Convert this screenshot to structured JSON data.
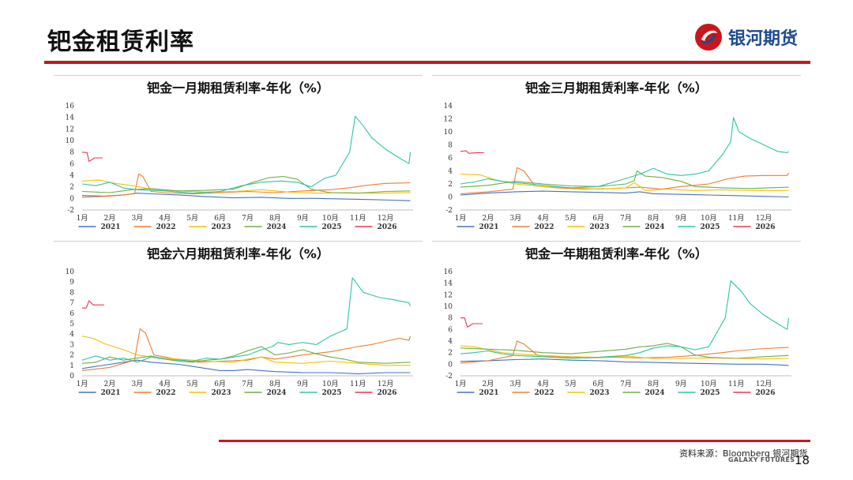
{
  "page": {
    "title": "钯金租赁利率",
    "logo_text": "银河期货",
    "source": "资料来源：Bloomberg 银河期货",
    "brand_en": "GALAXY FUTURES",
    "page_number": "18"
  },
  "colors": {
    "accent": "#c9161d",
    "logo_blue": "#1f4a8f",
    "series": {
      "2021": "#4472c4",
      "2022": "#ed7d31",
      "2023": "#f2c200",
      "2024": "#70ad47",
      "2025": "#2ec4a6",
      "2026": "#e8384f"
    }
  },
  "chart_data": [
    {
      "type": "line",
      "title": "钯金一月期租赁利率-年化（%）",
      "x_labels": [
        "1月",
        "2月",
        "3月",
        "4月",
        "5月",
        "6月",
        "7月",
        "8月",
        "9月",
        "10月",
        "11月",
        "12月"
      ],
      "ylim": [
        -2,
        16
      ],
      "yticks": [
        -2,
        0,
        2,
        4,
        6,
        8,
        10,
        12,
        14,
        16
      ],
      "legend_position": "bottom",
      "grid": false,
      "series": [
        {
          "name": "2021",
          "x": [
            1,
            1.8,
            2.5,
            3,
            3.5,
            4.5,
            5.5,
            6.5,
            7.5,
            8.5,
            9.5,
            10.5,
            11.5,
            12.2,
            12.9
          ],
          "y": [
            0.5,
            0.4,
            0.6,
            0.9,
            0.8,
            0.6,
            0.3,
            0.1,
            0.2,
            0.0,
            0.0,
            -0.1,
            -0.2,
            -0.3,
            -0.4
          ]
        },
        {
          "name": "2022",
          "x": [
            1,
            2,
            2.9,
            3.05,
            3.2,
            3.5,
            4,
            5,
            6,
            7,
            8,
            9,
            10,
            10.8,
            11.2,
            12,
            12.9
          ],
          "y": [
            0.2,
            0.4,
            0.8,
            4.2,
            3.8,
            1.2,
            1.0,
            0.8,
            1.0,
            1.2,
            1.0,
            1.3,
            1.5,
            1.9,
            2.2,
            2.6,
            2.7
          ]
        },
        {
          "name": "2023",
          "x": [
            1,
            1.6,
            2.2,
            2.8,
            3.5,
            4.5,
            5.5,
            6.5,
            7.5,
            8.5,
            9.5,
            10.5,
            11.5,
            12.9
          ],
          "y": [
            3.0,
            3.2,
            2.6,
            2.2,
            1.6,
            1.3,
            1.1,
            1.2,
            1.5,
            1.1,
            0.9,
            1.0,
            0.9,
            1.0
          ]
        },
        {
          "name": "2024",
          "x": [
            1,
            2,
            2.8,
            3.5,
            4.5,
            5.5,
            6.5,
            7.2,
            7.8,
            8.3,
            8.8,
            9.3,
            10,
            11,
            12,
            12.9
          ],
          "y": [
            1.2,
            1.0,
            1.5,
            1.7,
            1.3,
            1.4,
            1.6,
            2.8,
            3.6,
            3.8,
            3.3,
            1.6,
            1.0,
            0.9,
            1.2,
            1.3
          ]
        },
        {
          "name": "2025",
          "x": [
            1,
            1.5,
            2,
            2.5,
            3,
            4,
            5,
            6,
            6.8,
            7.5,
            8.2,
            8.8,
            9.3,
            9.8,
            10.2,
            10.7,
            10.9,
            11.2,
            11.5,
            12,
            12.5,
            12.85,
            12.9
          ],
          "y": [
            2.5,
            2.2,
            2.8,
            1.8,
            1.5,
            1.3,
            0.9,
            1.2,
            2.2,
            2.8,
            3.0,
            2.8,
            2.0,
            3.5,
            4.0,
            8.0,
            14.2,
            12.5,
            10.5,
            8.5,
            7.0,
            6.0,
            8.0
          ]
        },
        {
          "name": "2026",
          "x": [
            1,
            1.18,
            1.25,
            1.45,
            1.75
          ],
          "y": [
            8.0,
            7.9,
            6.4,
            7.0,
            7.0
          ]
        }
      ]
    },
    {
      "type": "line",
      "title": "钯金三月期租赁利率-年化（%）",
      "x_labels": [
        "1月",
        "2月",
        "3月",
        "4月",
        "5月",
        "6月",
        "7月",
        "8月",
        "9月",
        "10月",
        "11月",
        "12月"
      ],
      "ylim": [
        -2,
        14
      ],
      "yticks": [
        -2,
        0,
        2,
        4,
        6,
        8,
        10,
        12,
        14
      ],
      "legend_position": "bottom",
      "grid": false,
      "series": [
        {
          "name": "2021",
          "x": [
            1,
            2,
            3,
            4,
            5,
            6,
            7,
            7.5,
            8,
            9,
            10,
            11,
            12,
            12.9
          ],
          "y": [
            0.3,
            0.6,
            0.8,
            0.9,
            0.8,
            0.7,
            0.6,
            0.8,
            0.5,
            0.4,
            0.3,
            0.2,
            0.1,
            0.0
          ]
        },
        {
          "name": "2022",
          "x": [
            1,
            2,
            2.9,
            3.05,
            3.3,
            3.7,
            4.5,
            5.5,
            6.5,
            7.5,
            8.3,
            9,
            10,
            10.7,
            11.3,
            12,
            12.85,
            12.9
          ],
          "y": [
            0.5,
            0.8,
            1.2,
            4.5,
            4.0,
            1.7,
            1.4,
            1.2,
            1.3,
            1.5,
            1.2,
            1.6,
            2.0,
            2.8,
            3.2,
            3.3,
            3.3,
            3.7
          ]
        },
        {
          "name": "2023",
          "x": [
            1,
            1.7,
            2.3,
            3,
            4,
            5,
            6,
            7,
            7.3,
            7.7,
            8.5,
            9.5,
            10.5,
            11.5,
            12.9
          ],
          "y": [
            3.5,
            3.4,
            2.6,
            2.0,
            1.6,
            1.4,
            1.2,
            1.4,
            2.2,
            1.0,
            1.2,
            1.0,
            1.1,
            1.0,
            1.0
          ]
        },
        {
          "name": "2024",
          "x": [
            1,
            2,
            3,
            4,
            5,
            6,
            7,
            7.3,
            7.4,
            7.7,
            8.3,
            9,
            9.5,
            10.5,
            11.5,
            12.9
          ],
          "y": [
            1.5,
            1.8,
            2.4,
            2.0,
            1.7,
            1.6,
            2.0,
            2.5,
            4.0,
            3.2,
            3.0,
            2.4,
            1.6,
            1.4,
            1.3,
            1.5
          ]
        },
        {
          "name": "2025",
          "x": [
            1,
            1.5,
            2,
            2.5,
            3,
            4,
            5,
            6,
            6.8,
            7.5,
            8,
            8.5,
            9,
            9.5,
            10,
            10.5,
            10.8,
            10.9,
            11.1,
            11.5,
            12,
            12.5,
            12.85,
            12.9
          ],
          "y": [
            2.0,
            2.3,
            2.8,
            2.4,
            2.2,
            1.8,
            1.4,
            1.6,
            2.6,
            3.5,
            4.4,
            3.5,
            3.3,
            3.5,
            4.0,
            6.5,
            8.5,
            12.2,
            10.0,
            9.0,
            8.0,
            7.0,
            6.8,
            7.0
          ]
        },
        {
          "name": "2026",
          "x": [
            1,
            1.2,
            1.3,
            1.6,
            1.85
          ],
          "y": [
            7.0,
            7.1,
            6.7,
            6.8,
            6.8
          ]
        }
      ]
    },
    {
      "type": "line",
      "title": "钯金六月期租赁利率-年化（%）",
      "x_labels": [
        "1月",
        "2月",
        "3月",
        "4月",
        "5月",
        "6月",
        "7月",
        "8月",
        "9月",
        "10月",
        "11月",
        "12月"
      ],
      "ylim": [
        0,
        10
      ],
      "yticks": [
        0,
        1,
        2,
        3,
        4,
        5,
        6,
        7,
        8,
        9,
        10
      ],
      "legend_position": "bottom",
      "grid": false,
      "series": [
        {
          "name": "2021",
          "x": [
            1,
            1.5,
            2,
            2.5,
            3,
            3.5,
            4,
            4.5,
            5,
            5.5,
            6,
            6.5,
            7,
            7.5,
            8,
            9,
            10,
            11,
            12,
            12.9
          ],
          "y": [
            0.7,
            0.9,
            1.1,
            1.3,
            1.5,
            1.3,
            1.2,
            1.1,
            0.9,
            0.7,
            0.5,
            0.5,
            0.6,
            0.5,
            0.4,
            0.3,
            0.3,
            0.2,
            0.3,
            0.3
          ]
        },
        {
          "name": "2022",
          "x": [
            1,
            2,
            2.9,
            3.1,
            3.3,
            3.6,
            4,
            4.6,
            5.2,
            6,
            7,
            7.5,
            8,
            9,
            10,
            11,
            11.5,
            12,
            12.5,
            12.85,
            12.9
          ],
          "y": [
            0.5,
            0.8,
            1.5,
            4.5,
            4.1,
            2.0,
            1.8,
            1.5,
            1.3,
            1.4,
            1.5,
            1.8,
            1.6,
            2.0,
            2.3,
            2.8,
            3.0,
            3.3,
            3.6,
            3.4,
            3.8
          ]
        },
        {
          "name": "2023",
          "x": [
            1,
            1.4,
            1.8,
            2.5,
            3,
            3.5,
            4.5,
            5.5,
            6.5,
            7,
            7.5,
            8,
            9,
            10,
            11,
            12,
            12.9
          ],
          "y": [
            3.8,
            3.6,
            3.1,
            2.5,
            2.0,
            1.8,
            1.6,
            1.4,
            1.3,
            1.6,
            1.8,
            1.3,
            1.2,
            1.4,
            1.2,
            1.0,
            1.0
          ]
        },
        {
          "name": "2024",
          "x": [
            1,
            1.5,
            2,
            2.5,
            3,
            3.5,
            4,
            4.5,
            5,
            5.5,
            6,
            6.5,
            7,
            7.5,
            8,
            8.5,
            9,
            9.5,
            10,
            10.5,
            11,
            12,
            12.9
          ],
          "y": [
            1.2,
            1.3,
            1.8,
            1.5,
            1.7,
            1.9,
            1.6,
            1.4,
            1.3,
            1.5,
            1.6,
            1.9,
            2.4,
            2.8,
            2.0,
            2.2,
            2.5,
            2.1,
            1.8,
            1.6,
            1.3,
            1.2,
            1.3
          ]
        },
        {
          "name": "2025",
          "x": [
            1,
            1.5,
            2,
            2.5,
            3,
            3.5,
            4,
            4.5,
            5,
            5.5,
            6,
            6.5,
            7,
            7.5,
            7.9,
            8.1,
            8.5,
            9,
            9.5,
            10,
            10.6,
            10.8,
            11.2,
            11.8,
            12.3,
            12.85,
            12.9
          ],
          "y": [
            1.5,
            1.9,
            1.5,
            1.7,
            1.3,
            1.8,
            1.6,
            1.5,
            1.4,
            1.7,
            1.6,
            1.8,
            2.0,
            2.5,
            2.8,
            3.2,
            3.0,
            3.2,
            3.0,
            3.8,
            4.5,
            9.4,
            8.0,
            7.5,
            7.3,
            7.0,
            6.7
          ]
        },
        {
          "name": "2026",
          "x": [
            1,
            1.15,
            1.25,
            1.4,
            1.8
          ],
          "y": [
            6.5,
            6.5,
            7.2,
            6.8,
            6.8
          ]
        }
      ]
    },
    {
      "type": "line",
      "title": "钯金一年期租赁利率-年化（%）",
      "x_labels": [
        "1月",
        "2月",
        "3月",
        "4月",
        "5月",
        "6月",
        "7月",
        "8月",
        "9月",
        "10月",
        "11月",
        "12月"
      ],
      "ylim": [
        -2,
        16
      ],
      "yticks": [
        -2,
        0,
        2,
        4,
        6,
        8,
        10,
        12,
        14,
        16
      ],
      "legend_position": "bottom",
      "grid": false,
      "series": [
        {
          "name": "2021",
          "x": [
            1,
            2,
            3,
            4,
            5,
            6,
            7,
            8,
            9,
            10,
            11,
            12,
            12.9
          ],
          "y": [
            0.5,
            0.6,
            0.8,
            0.9,
            0.7,
            0.6,
            0.4,
            0.3,
            0.2,
            0.1,
            0.0,
            0.0,
            -0.2
          ]
        },
        {
          "name": "2022",
          "x": [
            1,
            2,
            2.9,
            3.05,
            3.3,
            3.8,
            4.5,
            5.5,
            6.5,
            7.5,
            8.5,
            9.5,
            10.5,
            11,
            11.5,
            12,
            12.9
          ],
          "y": [
            0.2,
            0.6,
            1.5,
            4.0,
            3.5,
            1.5,
            1.3,
            1.1,
            1.2,
            1.1,
            1.2,
            1.5,
            2.0,
            2.3,
            2.5,
            2.7,
            2.9
          ]
        },
        {
          "name": "2023",
          "x": [
            1,
            1.5,
            2,
            2.5,
            3,
            4,
            5,
            6,
            7,
            8,
            9,
            10,
            11,
            12,
            12.9
          ],
          "y": [
            3.2,
            3.0,
            2.5,
            2.0,
            1.8,
            1.5,
            1.3,
            1.2,
            1.4,
            1.0,
            1.0,
            1.1,
            1.0,
            0.9,
            1.0
          ]
        },
        {
          "name": "2024",
          "x": [
            1,
            2,
            3,
            4,
            5,
            6,
            7,
            7.5,
            8,
            8.5,
            9,
            9.5,
            10,
            11,
            12,
            12.9
          ],
          "y": [
            2.8,
            2.6,
            2.4,
            2.0,
            1.8,
            2.2,
            2.6,
            3.0,
            3.2,
            3.6,
            3.0,
            1.6,
            1.2,
            1.0,
            1.3,
            1.5
          ]
        },
        {
          "name": "2025",
          "x": [
            1,
            1.5,
            2,
            2.5,
            3,
            4,
            5,
            6,
            7,
            7.5,
            8,
            8.5,
            9,
            9.5,
            10,
            10.6,
            10.8,
            11.2,
            11.5,
            12,
            12.5,
            12.85,
            12.9
          ],
          "y": [
            1.8,
            2.0,
            2.3,
            1.8,
            1.5,
            1.3,
            1.0,
            1.2,
            1.5,
            2.0,
            2.8,
            3.2,
            3.0,
            2.5,
            3.0,
            8.0,
            14.4,
            12.5,
            10.5,
            8.5,
            7.0,
            6.0,
            8.0
          ]
        },
        {
          "name": "2026",
          "x": [
            1,
            1.15,
            1.25,
            1.45,
            1.8
          ],
          "y": [
            8.0,
            8.0,
            6.4,
            7.0,
            7.0
          ]
        }
      ]
    }
  ]
}
